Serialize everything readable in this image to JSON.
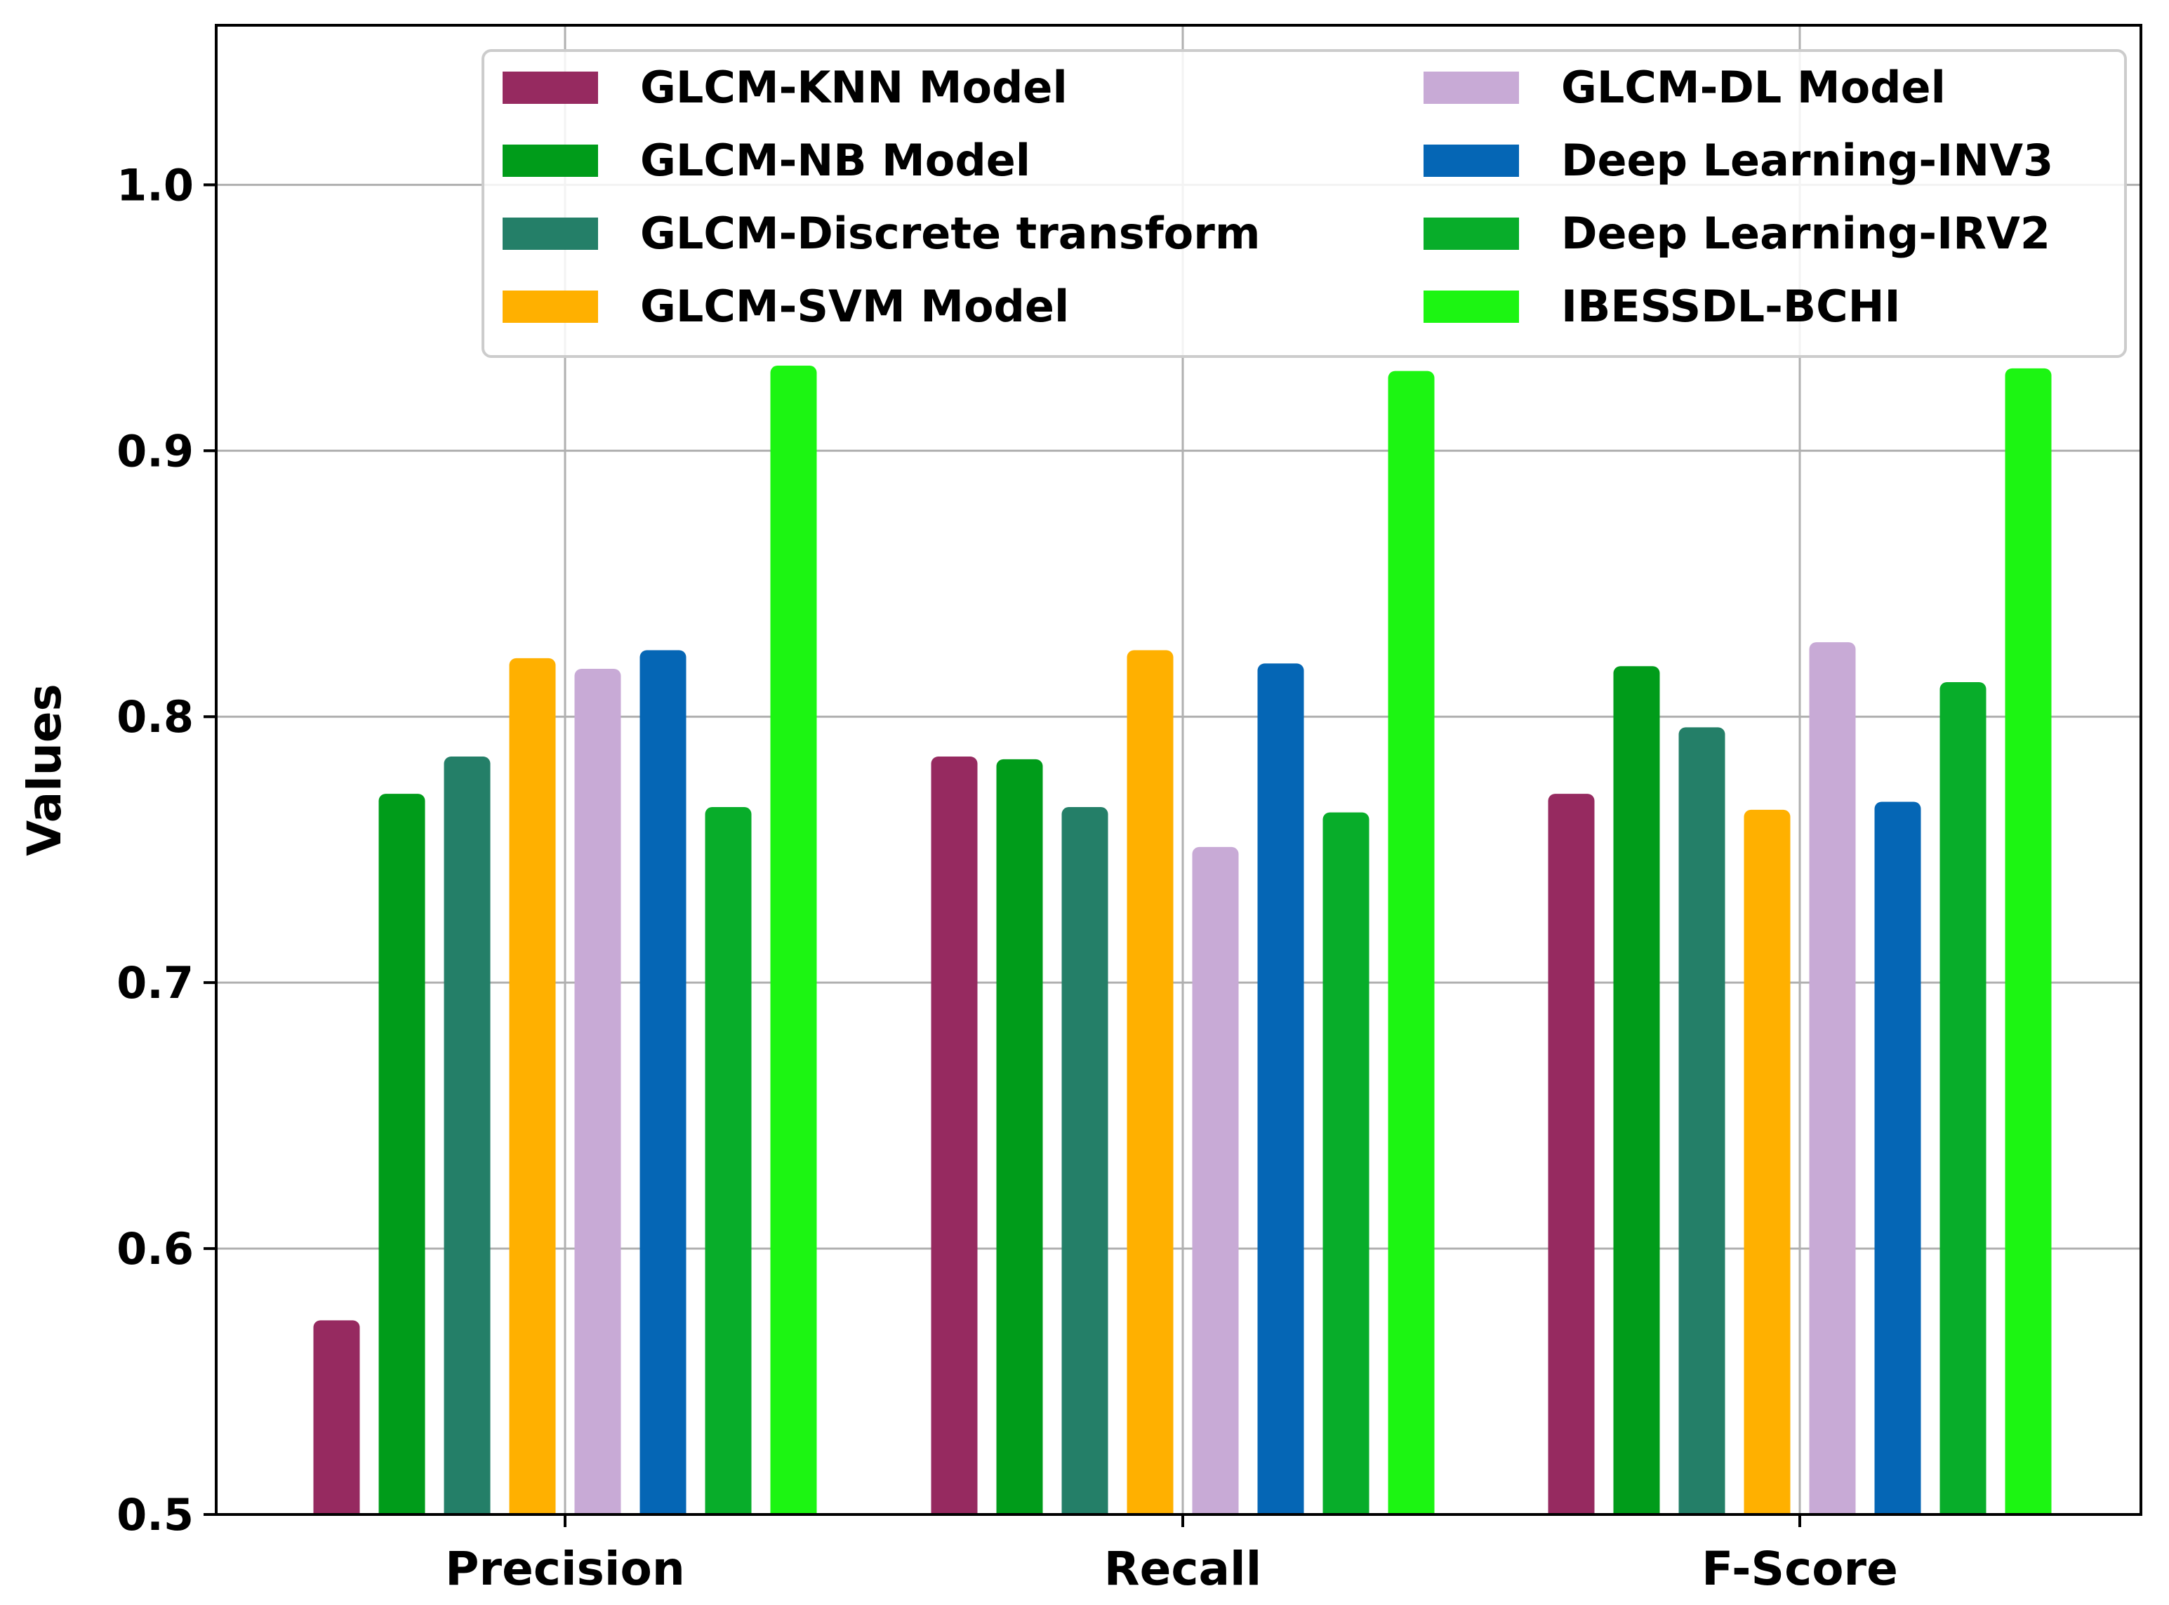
{
  "chart_data": {
    "type": "bar",
    "title": "",
    "xlabel": "",
    "ylabel": "Values",
    "ylim": [
      0.5,
      1.06
    ],
    "yticks": [
      0.5,
      0.6,
      0.7,
      0.8,
      0.9,
      1.0
    ],
    "ytick_labels": [
      "0.5",
      "0.6",
      "0.7",
      "0.8",
      "0.9",
      "1.0"
    ],
    "grid": true,
    "legend_position": "top-right",
    "legend_columns": 2,
    "categories": [
      "Precision",
      "Recall",
      "F-Score"
    ],
    "series": [
      {
        "name": "GLCM-KNN Model",
        "color": "#962a60",
        "values": [
          0.573,
          0.785,
          0.771
        ]
      },
      {
        "name": "GLCM-NB Model",
        "color": "#009c1a",
        "values": [
          0.771,
          0.784,
          0.819
        ]
      },
      {
        "name": "GLCM-Discrete transform",
        "color": "#247f68",
        "values": [
          0.785,
          0.766,
          0.796
        ]
      },
      {
        "name": "GLCM-SVM Model",
        "color": "#ffb000",
        "values": [
          0.822,
          0.825,
          0.765
        ]
      },
      {
        "name": "GLCM-DL Model",
        "color": "#c8aad6",
        "values": [
          0.818,
          0.751,
          0.828
        ]
      },
      {
        "name": "Deep Learning-INV3",
        "color": "#0566b5",
        "values": [
          0.825,
          0.82,
          0.768
        ]
      },
      {
        "name": "Deep Learning-IRV2",
        "color": "#08ad2a",
        "values": [
          0.766,
          0.764,
          0.813
        ]
      },
      {
        "name": "IBESSDL-BCHI",
        "color": "#1cf512",
        "values": [
          0.932,
          0.93,
          0.931
        ]
      }
    ]
  }
}
